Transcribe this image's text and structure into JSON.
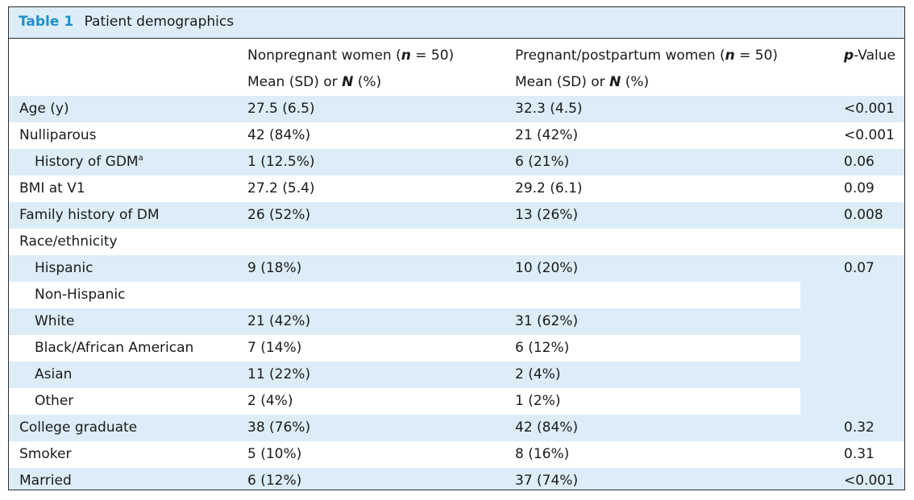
{
  "table": {
    "label": "Table 1",
    "title": "Patient demographics",
    "columns": {
      "col1": {
        "name_pre": "Nonpregnant women (",
        "n_var": "n",
        "name_post": " = 50)",
        "stat_pre": "Mean (SD) or ",
        "stat_var": "N",
        "stat_post": " (%)"
      },
      "col2": {
        "name_pre": "Pregnant/postpartum women (",
        "n_var": "n",
        "name_post": " = 50)",
        "stat_pre": "Mean (SD) or ",
        "stat_var": "N",
        "stat_post": " (%)"
      },
      "col3": {
        "var": "p",
        "suffix": "-Value"
      }
    },
    "rows": [
      {
        "label": "Age (y)",
        "a": "27.5 (6.5)",
        "b": "32.3 (4.5)",
        "p": "<0.001"
      },
      {
        "label": "Nulliparous",
        "a": "42 (84%)",
        "b": "21 (42%)",
        "p": "<0.001"
      },
      {
        "label": "History of GDM",
        "sup": "a",
        "a": "1 (12.5%)",
        "b": "6 (21%)",
        "p": "0.06"
      },
      {
        "label": "BMI at V1",
        "a": "27.2 (5.4)",
        "b": "29.2 (6.1)",
        "p": "0.09"
      },
      {
        "label": "Family history of DM",
        "a": "26 (52%)",
        "b": "13 (26%)",
        "p": "0.008"
      },
      {
        "label": "Race/ethnicity",
        "a": "",
        "b": "",
        "p": ""
      },
      {
        "label": "Hispanic",
        "a": "9 (18%)",
        "b": "10 (20%)",
        "p": "0.07"
      },
      {
        "label": "Non-Hispanic",
        "a": "",
        "b": "",
        "p": ""
      },
      {
        "label": "White",
        "a": "21 (42%)",
        "b": "31 (62%)",
        "p": ""
      },
      {
        "label": "Black/African American",
        "a": "7 (14%)",
        "b": "6 (12%)",
        "p": ""
      },
      {
        "label": "Asian",
        "a": "11 (22%)",
        "b": "2 (4%)",
        "p": ""
      },
      {
        "label": "Other",
        "a": "2 (4%)",
        "b": "1 (2%)",
        "p": ""
      },
      {
        "label": "College graduate",
        "a": "38 (76%)",
        "b": "42 (84%)",
        "p": "0.32"
      },
      {
        "label": "Smoker",
        "a": "5 (10%)",
        "b": "8 (16%)",
        "p": "0.31"
      },
      {
        "label": "Married",
        "a": "6 (12%)",
        "b": "37 (74%)",
        "p": "<0.001"
      }
    ]
  },
  "colors": {
    "accent": "#1f8fcf",
    "row_shade": "#dcedf8",
    "border": "#2b2b2b"
  }
}
